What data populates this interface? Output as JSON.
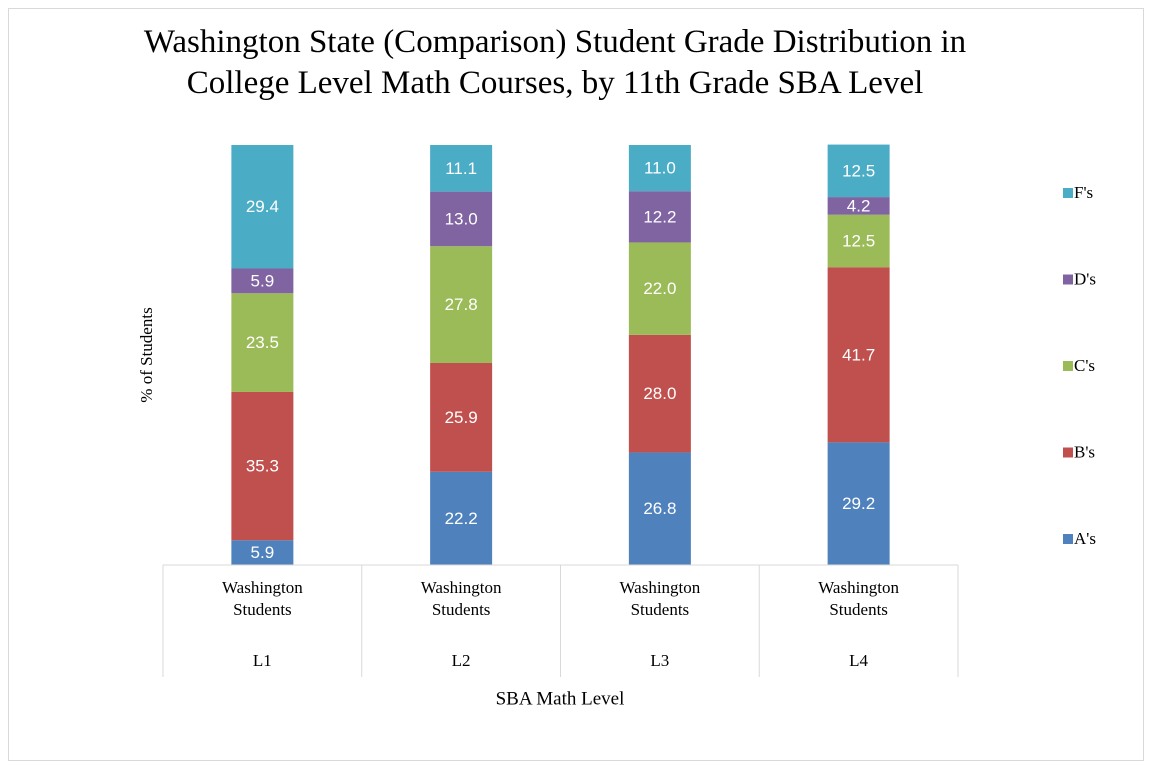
{
  "chart_data": {
    "type": "stacked_bar",
    "title": "Washington State (Comparison) Student Grade Distribution in College Level Math Courses, by 11th Grade SBA Level",
    "y_label": "% of Students",
    "x_label": "SBA Math Level",
    "categories": [
      "Washington Students",
      "Washington Students",
      "Washington Students",
      "Washington Students"
    ],
    "groups": [
      "L1",
      "L2",
      "L3",
      "L4"
    ],
    "ylim": [
      0,
      100
    ],
    "series": [
      {
        "name": "A's",
        "color": "#4f81bd",
        "values": [
          5.9,
          22.2,
          26.8,
          29.2
        ],
        "value_labels": [
          "5.9",
          "22.2",
          "26.8",
          "29.2"
        ]
      },
      {
        "name": "B's",
        "color": "#c0504d",
        "values": [
          35.3,
          25.9,
          28.0,
          41.7
        ],
        "value_labels": [
          "35.3",
          "25.9",
          "28.0",
          "41.7"
        ]
      },
      {
        "name": "C's",
        "color": "#9bbb59",
        "values": [
          23.5,
          27.8,
          22.0,
          12.5
        ],
        "value_labels": [
          "23.5",
          "27.8",
          "22.0",
          "12.5"
        ]
      },
      {
        "name": "D's",
        "color": "#8064a2",
        "values": [
          5.9,
          13.0,
          12.2,
          4.2
        ],
        "value_labels": [
          "5.9",
          "13.0",
          "12.2",
          "4.2"
        ]
      },
      {
        "name": "F's",
        "color": "#4bacc6",
        "values": [
          29.4,
          11.1,
          11.0,
          12.5
        ],
        "value_labels": [
          "29.4",
          "11.1",
          "11.0",
          "12.5"
        ]
      }
    ],
    "legend": "right"
  }
}
